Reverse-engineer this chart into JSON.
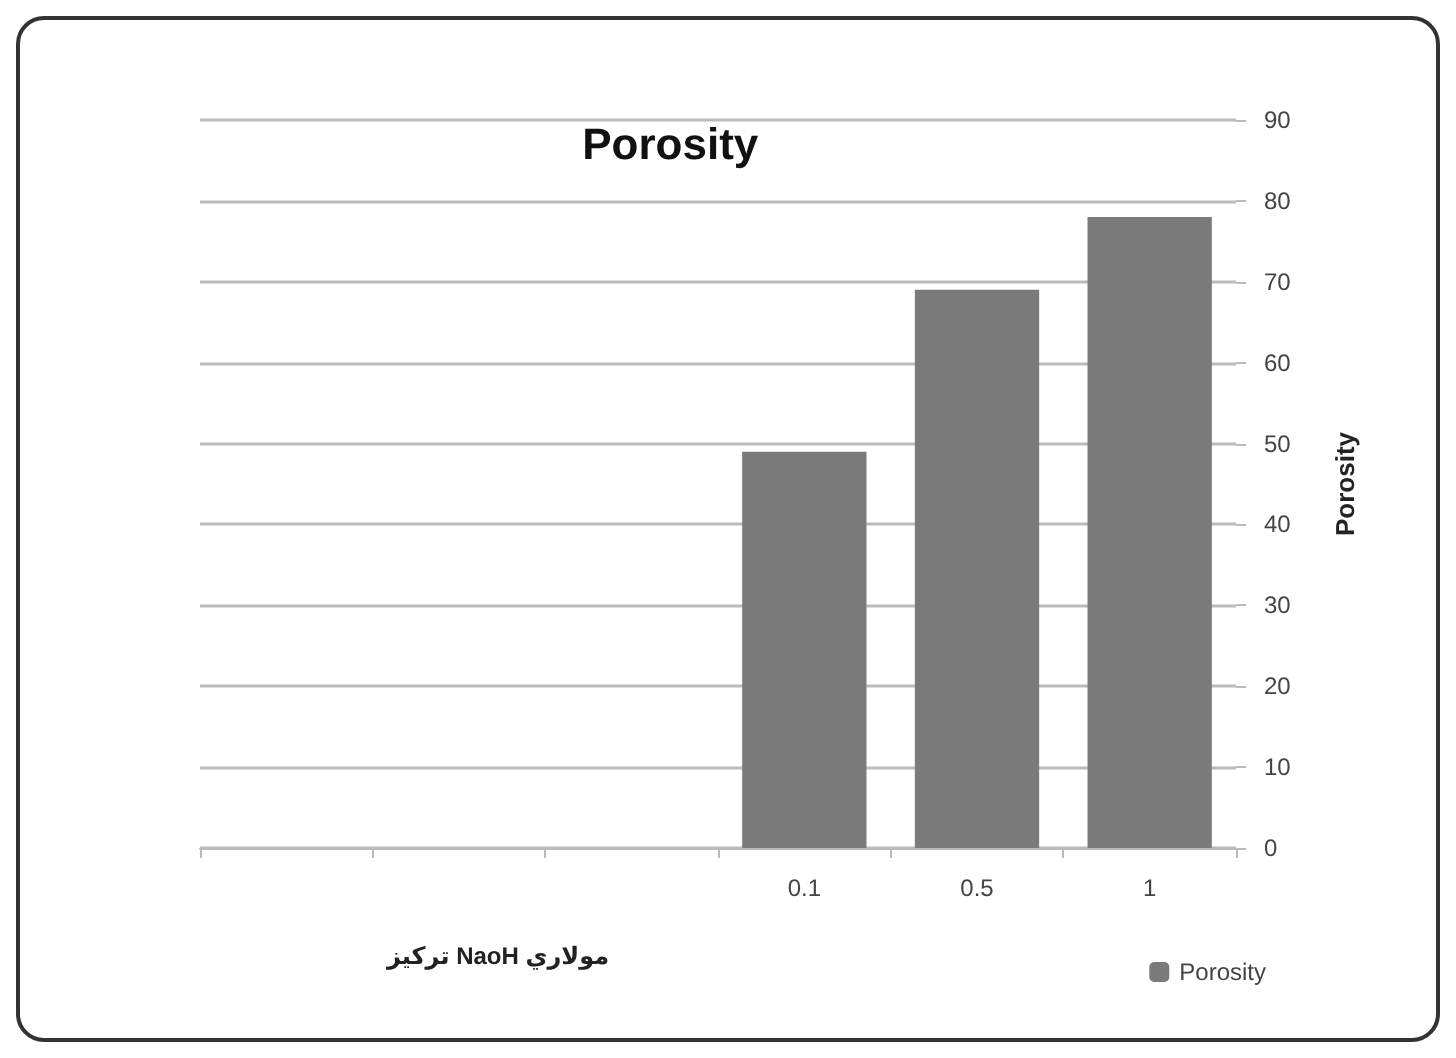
{
  "chart_data": {
    "type": "bar",
    "title": "Porosity",
    "xlabel": "تركيز NaoH مولاري",
    "ylabel": "Porosity",
    "categories": [
      null,
      null,
      null,
      "0.1",
      "0.5",
      "1"
    ],
    "series": [
      {
        "name": "Porosity",
        "color": "#7a7a7a",
        "values": [
          null,
          null,
          null,
          49,
          69,
          78
        ]
      }
    ],
    "ylim": [
      0,
      90
    ],
    "yticks": [
      0,
      10,
      20,
      30,
      40,
      50,
      60,
      70,
      80,
      90
    ],
    "grid": "y",
    "legend": "bottom right"
  }
}
